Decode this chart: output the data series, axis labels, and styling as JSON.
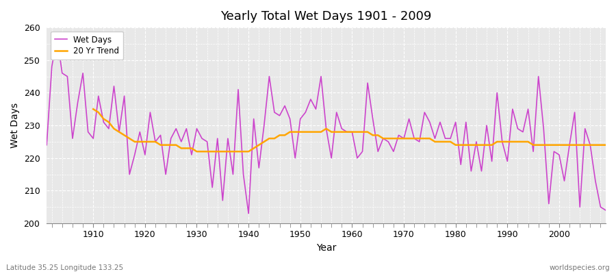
{
  "title": "Yearly Total Wet Days 1901 - 2009",
  "xlabel": "Year",
  "ylabel": "Wet Days",
  "footnote_left": "Latitude 35.25 Longitude 133.25",
  "footnote_right": "worldspecies.org",
  "ylim": [
    200,
    260
  ],
  "yticks": [
    200,
    210,
    220,
    230,
    240,
    250,
    260
  ],
  "years": [
    1901,
    1902,
    1903,
    1904,
    1905,
    1906,
    1907,
    1908,
    1909,
    1910,
    1911,
    1912,
    1913,
    1914,
    1915,
    1916,
    1917,
    1918,
    1919,
    1920,
    1921,
    1922,
    1923,
    1924,
    1925,
    1926,
    1927,
    1928,
    1929,
    1930,
    1931,
    1932,
    1933,
    1934,
    1935,
    1936,
    1937,
    1938,
    1939,
    1940,
    1941,
    1942,
    1943,
    1944,
    1945,
    1946,
    1947,
    1948,
    1949,
    1950,
    1951,
    1952,
    1953,
    1954,
    1955,
    1956,
    1957,
    1958,
    1959,
    1960,
    1961,
    1962,
    1963,
    1964,
    1965,
    1966,
    1967,
    1968,
    1969,
    1970,
    1971,
    1972,
    1973,
    1974,
    1975,
    1976,
    1977,
    1978,
    1979,
    1980,
    1981,
    1982,
    1983,
    1984,
    1985,
    1986,
    1987,
    1988,
    1989,
    1990,
    1991,
    1992,
    1993,
    1994,
    1995,
    1996,
    1997,
    1998,
    1999,
    2000,
    2001,
    2002,
    2003,
    2004,
    2005,
    2006,
    2007,
    2008,
    2009
  ],
  "wet_days": [
    224,
    248,
    257,
    246,
    245,
    226,
    237,
    246,
    228,
    226,
    239,
    231,
    229,
    242,
    228,
    239,
    215,
    221,
    228,
    221,
    234,
    225,
    227,
    215,
    226,
    229,
    225,
    229,
    221,
    229,
    226,
    225,
    211,
    226,
    207,
    226,
    215,
    241,
    215,
    203,
    232,
    217,
    230,
    245,
    234,
    233,
    236,
    232,
    220,
    232,
    234,
    238,
    235,
    245,
    229,
    220,
    234,
    229,
    228,
    228,
    220,
    222,
    243,
    232,
    222,
    226,
    225,
    222,
    227,
    226,
    232,
    226,
    225,
    234,
    231,
    226,
    231,
    226,
    226,
    231,
    218,
    231,
    216,
    225,
    216,
    230,
    219,
    240,
    225,
    219,
    235,
    229,
    228,
    235,
    222,
    245,
    229,
    206,
    222,
    221,
    213,
    224,
    234,
    205,
    229,
    224,
    213,
    205,
    204
  ],
  "trend_values": [
    null,
    null,
    null,
    null,
    null,
    null,
    null,
    null,
    null,
    235,
    234,
    232,
    231,
    229,
    228,
    227,
    226,
    225,
    225,
    225,
    225,
    225,
    224,
    224,
    224,
    224,
    223,
    223,
    223,
    222,
    222,
    222,
    222,
    222,
    222,
    222,
    222,
    222,
    222,
    222,
    223,
    224,
    225,
    226,
    226,
    227,
    227,
    228,
    228,
    228,
    228,
    228,
    228,
    228,
    229,
    228,
    228,
    228,
    228,
    228,
    228,
    228,
    228,
    227,
    227,
    226,
    226,
    226,
    226,
    226,
    226,
    226,
    226,
    226,
    226,
    225,
    225,
    225,
    225,
    224,
    224,
    224,
    224,
    224,
    224,
    224,
    224,
    225,
    225,
    225,
    225,
    225,
    225,
    225,
    224,
    224,
    224,
    224,
    224,
    224,
    224,
    224,
    224,
    224,
    224,
    224,
    224,
    224,
    224
  ],
  "wet_color": "#cc44cc",
  "trend_color": "#ffa500",
  "bg_color": "#ffffff",
  "plot_bg_color": "#e8e8e8",
  "grid_color": "#ffffff",
  "legend_bg": "#ffffff",
  "xticks": [
    1910,
    1920,
    1930,
    1940,
    1950,
    1960,
    1970,
    1980,
    1990,
    2000
  ],
  "xlim": [
    1901,
    2009
  ]
}
